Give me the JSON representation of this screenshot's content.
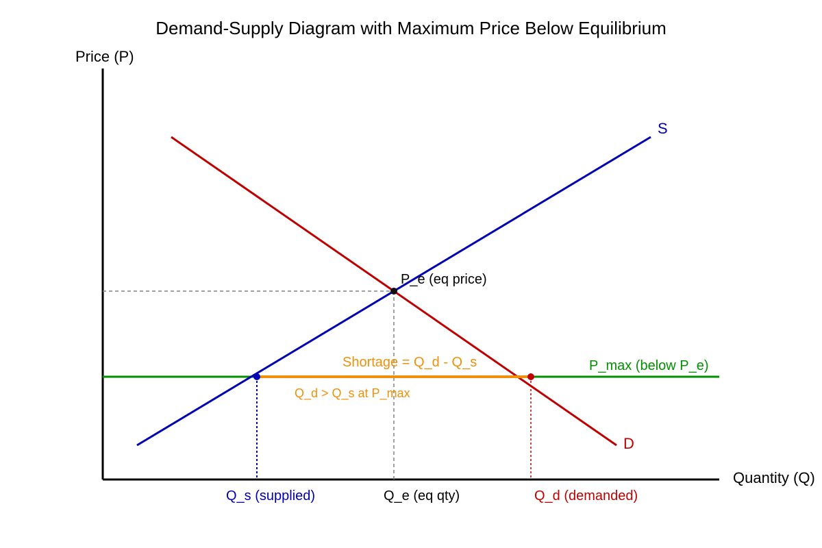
{
  "title": "Demand-Supply Diagram with Maximum Price Below Equilibrium",
  "axes": {
    "y_label": "Price (P)",
    "x_label": "Quantity (Q)"
  },
  "curves": {
    "supply_label": "S",
    "demand_label": "D",
    "price_ceiling_label": "P_max (below P_e)"
  },
  "points": {
    "equilibrium_label": "P_e (eq price)"
  },
  "quantities": {
    "supplied_label": "Q_s (supplied)",
    "equilibrium_label": "Q_e (eq qty)",
    "demanded_label": "Q_d (demanded)"
  },
  "shortage": {
    "label": "Shortage = Q_d - Q_s",
    "note": "Q_d > Q_s at P_max"
  },
  "colors": {
    "supply": "#0000b4",
    "demand": "#c00000",
    "price_ceiling": "#009000",
    "shortage": "#f0900a",
    "axis": "#000000",
    "guide": "#808080"
  }
}
